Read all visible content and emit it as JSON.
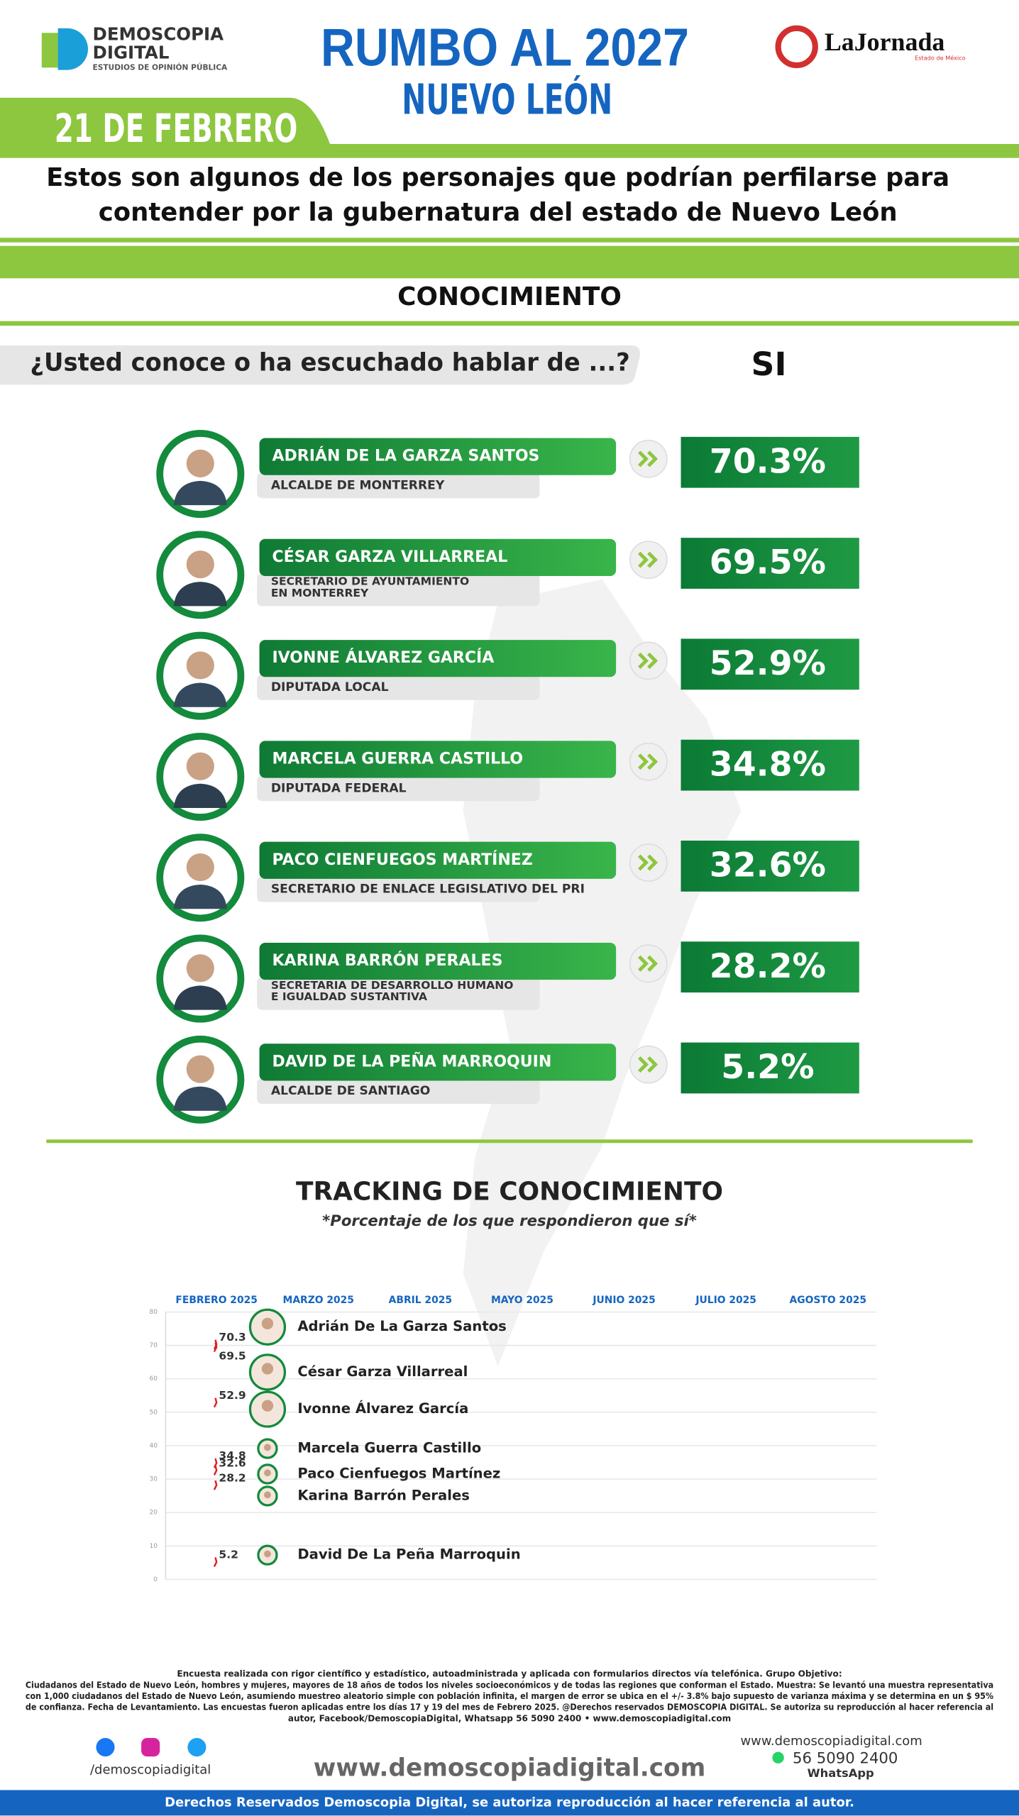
{
  "header": {
    "brand": [
      "DEMOSCOPIA",
      "DIGITAL"
    ],
    "brand_tagline": "ESTUDIOS DE OPINIÓN PÚBLICA",
    "title": "RUMBO AL 2027",
    "subtitle": "NUEVO LEÓN",
    "partner": "LaJornada",
    "partner_tagline": "Estado de México",
    "date": "21 DE FEBRERO"
  },
  "intro": [
    "Estos son algunos de los personajes que podrían perfilarse para",
    "contender por la gubernatura del estado de Nuevo León"
  ],
  "section": "CONOCIMIENTO",
  "question": "¿Usted conoce o ha escuchado hablar de ...?",
  "answer_column": "SI",
  "candidates": [
    {
      "name": "ADRIÁN DE LA GARZA SANTOS",
      "role": [
        "ALCALDE DE MONTERREY"
      ],
      "percent": "70.3%"
    },
    {
      "name": "CÉSAR GARZA VILLARREAL",
      "role": [
        "SECRETARIO DE AYUNTAMIENTO",
        "EN MONTERREY"
      ],
      "percent": "69.5%"
    },
    {
      "name": "IVONNE ÁLVAREZ GARCÍA",
      "role": [
        "DIPUTADA LOCAL"
      ],
      "percent": "52.9%"
    },
    {
      "name": "MARCELA GUERRA CASTILLO",
      "role": [
        "DIPUTADA FEDERAL"
      ],
      "percent": "34.8%"
    },
    {
      "name": "PACO CIENFUEGOS MARTÍNEZ",
      "role": [
        "SECRETARIO DE ENLACE LEGISLATIVO DEL PRI"
      ],
      "percent": "32.6%"
    },
    {
      "name": "KARINA BARRÓN PERALES",
      "role": [
        "SECRETARIA DE DESARROLLO HUMANO",
        "E IGUALDAD SUSTANTIVA"
      ],
      "percent": "28.2%"
    },
    {
      "name": "DAVID DE LA PEÑA MARROQUIN",
      "role": [
        "ALCALDE DE SANTIAGO"
      ],
      "percent": "5.2%"
    }
  ],
  "chart_data": {
    "type": "line",
    "title": "TRACKING DE CONOCIMIENTO",
    "subtitle": "*Porcentaje de los que respondieron que sí*",
    "categories": [
      "FEBRERO 2025",
      "MARZO 2025",
      "ABRIL 2025",
      "MAYO 2025",
      "JUNIO 2025",
      "JULIO 2025",
      "AGOSTO 2025"
    ],
    "series": [
      {
        "name": "Adrián De La Garza Santos",
        "color": "#e02020",
        "values": [
          70.3,
          null,
          null,
          null,
          null,
          null,
          null
        ]
      },
      {
        "name": "César Garza Villarreal",
        "color": "#e02020",
        "values": [
          69.5,
          null,
          null,
          null,
          null,
          null,
          null
        ]
      },
      {
        "name": "Ivonne Álvarez García",
        "color": "#e02020",
        "values": [
          52.9,
          null,
          null,
          null,
          null,
          null,
          null
        ]
      },
      {
        "name": "Marcela Guerra Castillo",
        "color": "#e02020",
        "values": [
          34.8,
          null,
          null,
          null,
          null,
          null,
          null
        ]
      },
      {
        "name": "Paco Cienfuegos Martínez",
        "color": "#e02020",
        "values": [
          32.6,
          null,
          null,
          null,
          null,
          null,
          null
        ]
      },
      {
        "name": "Karina Barrón Perales",
        "color": "#e02020",
        "values": [
          28.2,
          null,
          null,
          null,
          null,
          null,
          null
        ]
      },
      {
        "name": "David De La Peña Marroquin",
        "color": "#e02020",
        "values": [
          5.2,
          null,
          null,
          null,
          null,
          null,
          null
        ]
      }
    ],
    "ylim": [
      0,
      80
    ],
    "yticks": [
      0,
      10,
      20,
      30,
      40,
      50,
      60,
      70,
      80
    ],
    "grid": true
  },
  "footer": {
    "methodology": [
      "Encuesta realizada con rigor científico y estadístico, autoadministrada y aplicada con formularios directos vía telefónica. Grupo Objetivo:",
      "Ciudadanos del Estado de Nuevo León, hombres y mujeres, mayores de 18 años de todos los niveles socioeconómicos y de todas las regiones que conforman el Estado. Muestra: Se levantó una muestra representativa",
      "con 1,000 ciudadanos del Estado de Nuevo León, asumiendo muestreo aleatorio simple con población infinita, el margen de error se ubica en el +/- 3.8% bajo supuesto de varianza máxima y se determina en un $ 95%",
      "de confianza. Fecha de Levantamiento. Las encuestas fueron aplicadas entre los días 17 y 19 del mes de Febrero 2025. @Derechos reservados DEMOSCOPIA DIGITAL. Se autoriza su reproducción al hacer referencia al",
      "autor, Facebook/DemoscopiaDigital, Whatsapp 56 5090 2400 • www.demoscopiadigital.com"
    ],
    "social_handle": "/demoscopiadigital",
    "website_small": "www.demoscopiadigital.com",
    "website": "www.demoscopiadigital.com",
    "phone": "56 5090 2400",
    "phone_label": "WhatsApp",
    "rights": "Derechos Reservados Demoscopia Digital, se autoriza reproducción al hacer referencia al autor."
  }
}
